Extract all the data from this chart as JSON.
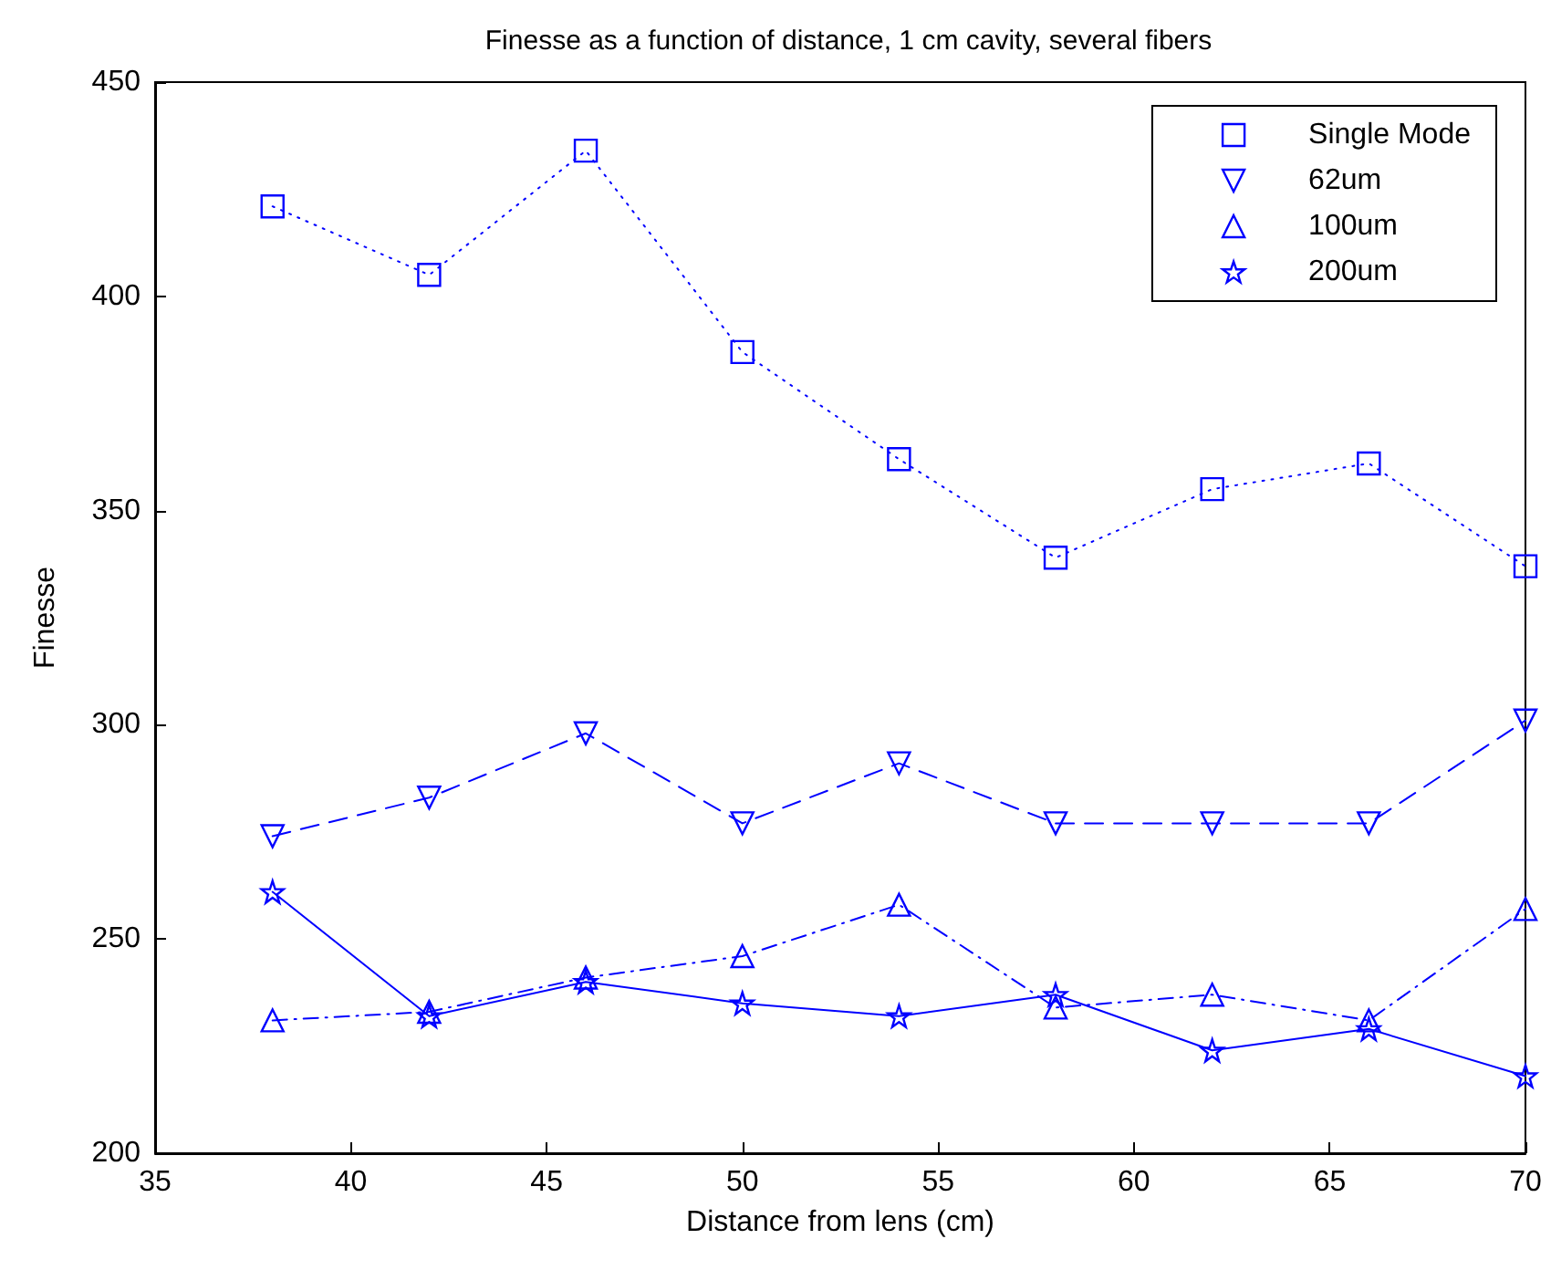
{
  "chart_data": {
    "type": "line",
    "title": "Finesse as a function of distance, 1 cm cavity, several fibers",
    "xlabel": "Distance from lens (cm)",
    "ylabel": "Finesse",
    "x": [
      38,
      42,
      46,
      50,
      54,
      58,
      62,
      66,
      70
    ],
    "series": [
      {
        "name": "Single Mode",
        "color": "#0000ff",
        "marker": "square",
        "line_style": "dotted",
        "values": [
          421,
          405,
          434,
          387,
          362,
          339,
          355,
          361,
          337
        ]
      },
      {
        "name": "62um",
        "color": "#0000ff",
        "marker": "triangle_down",
        "line_style": "dashed",
        "values": [
          274,
          283,
          298,
          277,
          291,
          277,
          277,
          277,
          301
        ]
      },
      {
        "name": "100um",
        "color": "#0000ff",
        "marker": "triangle",
        "line_style": "dashdot",
        "values": [
          231,
          233,
          241,
          246,
          258,
          234,
          237,
          231,
          257
        ]
      },
      {
        "name": "200um",
        "color": "#0000ff",
        "marker": "star",
        "line_style": "solid",
        "values": [
          261,
          232,
          240,
          235,
          232,
          237,
          224,
          229,
          218
        ]
      }
    ],
    "xlim": [
      35,
      70
    ],
    "xticks": [
      35,
      40,
      45,
      50,
      55,
      60,
      65,
      70
    ],
    "ylim": [
      200,
      450
    ],
    "yticks": [
      200,
      250,
      300,
      350,
      400,
      450
    ],
    "grid": false,
    "legend": "top right"
  }
}
